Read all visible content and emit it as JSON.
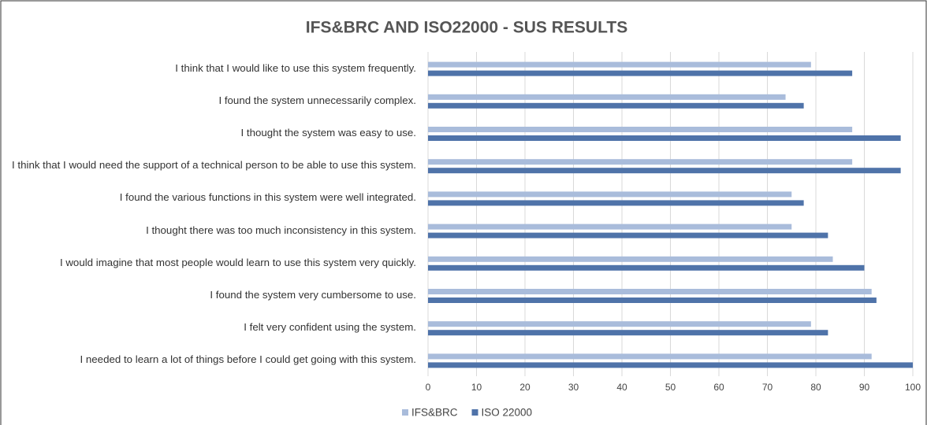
{
  "chart_data": {
    "type": "hbar",
    "title": "IFS&BRC AND ISO22000 - SUS RESULTS",
    "categories": [
      "I think that I would like to use this system frequently.",
      "I found the system unnecessarily complex.",
      "I thought the system was easy to use.",
      "I think that I would need the support of a technical person to be able to use this system.",
      "I found the various functions in this system were well integrated.",
      "I thought there was too much inconsistency in this system.",
      "I would imagine that most people would learn to use this system very quickly.",
      "I found the system very cumbersome to use.",
      "I felt very confident using the system.",
      "I needed to learn a lot of things before I could get going with this system."
    ],
    "series": [
      {
        "name": "IFS&BRC",
        "color": "#a9bcdb",
        "values": [
          79,
          73.75,
          87.5,
          87.5,
          75,
          75,
          83.5,
          91.5,
          79,
          91.5
        ]
      },
      {
        "name": "ISO 22000",
        "color": "#4f73a9",
        "values": [
          87.5,
          77.5,
          97.5,
          97.5,
          77.5,
          82.5,
          90,
          92.5,
          82.5,
          100
        ]
      }
    ],
    "xlim": [
      0,
      100
    ],
    "xticks": [
      0,
      10,
      20,
      30,
      40,
      50,
      60,
      70,
      80,
      90,
      100
    ],
    "grid": true,
    "legend": "bottom"
  }
}
